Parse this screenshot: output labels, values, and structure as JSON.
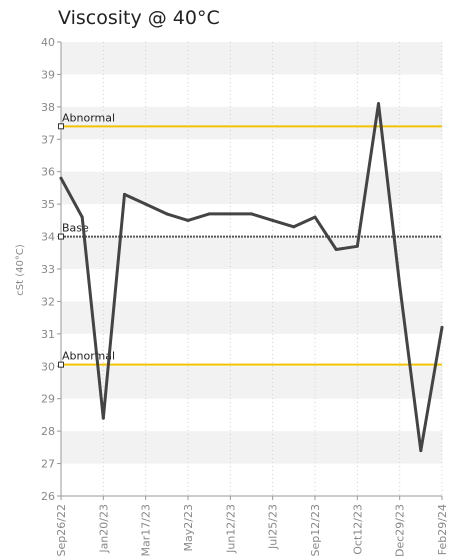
{
  "chart_data": {
    "type": "line",
    "title": "Viscosity @ 40°C",
    "ylabel": "cSt (40°C)",
    "xlabel": "",
    "ylim": [
      26,
      40
    ],
    "yticks": [
      "26",
      "27",
      "28",
      "29",
      "30",
      "31",
      "32",
      "33",
      "34",
      "35",
      "36",
      "37",
      "38",
      "39",
      "40"
    ],
    "xticks": [
      "Sep26/22",
      "Jan20/23",
      "Mar17/23",
      "May2/23",
      "Jun12/23",
      "Jul25/23",
      "Sep12/23",
      "Oct12/23",
      "Dec29/23",
      "Feb29/24"
    ],
    "grid": "horizontal-bands",
    "series": [
      {
        "x": [
          0,
          1,
          2,
          3,
          4,
          5,
          6,
          7,
          8,
          9,
          10,
          11,
          12,
          13,
          14,
          15,
          16,
          17,
          18
        ],
        "values": [
          35.8,
          34.6,
          28.4,
          35.3,
          35.0,
          34.7,
          34.5,
          34.7,
          34.7,
          34.7,
          34.5,
          34.3,
          34.6,
          33.6,
          33.7,
          38.1,
          32.5,
          27.4,
          31.2
        ],
        "color": "#444444"
      }
    ],
    "reference_lines": [
      {
        "label": "Abnormal",
        "value": 37.4,
        "color": "#f2c200",
        "style": "solid"
      },
      {
        "label": "Base",
        "value": 34.0,
        "color": "#555555",
        "style": "dashed"
      },
      {
        "label": "Abnormal",
        "value": 30.05,
        "color": "#f2c200",
        "style": "solid"
      }
    ]
  }
}
